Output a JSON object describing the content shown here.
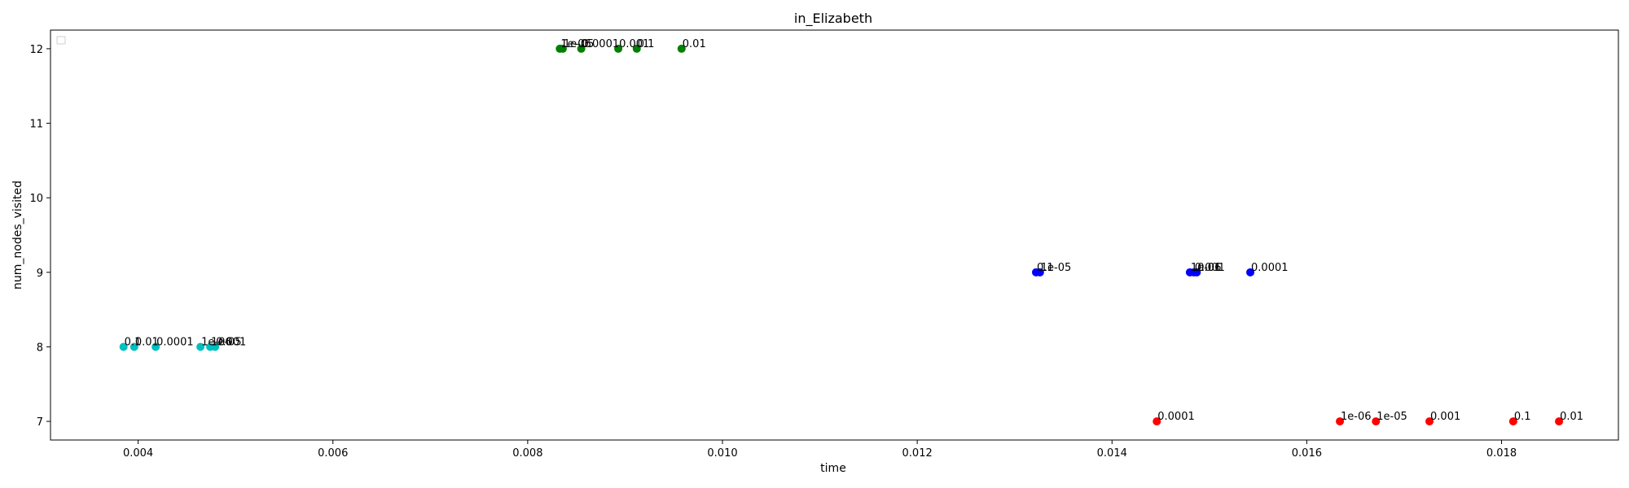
{
  "chart_data": {
    "type": "scatter",
    "title": "in_Elizabeth",
    "xlabel": "time",
    "ylabel": "num_nodes_visited",
    "xlim": [
      0.0031,
      0.0192
    ],
    "ylim": [
      6.75,
      12.25
    ],
    "xticks": [
      "0.004",
      "0.006",
      "0.008",
      "0.010",
      "0.012",
      "0.014",
      "0.016",
      "0.018"
    ],
    "xtick_values": [
      0.004,
      0.006,
      0.008,
      0.01,
      0.012,
      0.014,
      0.016,
      0.018
    ],
    "yticks": [
      "7",
      "8",
      "9",
      "10",
      "11",
      "12"
    ],
    "ytick_values": [
      7,
      8,
      9,
      10,
      11,
      12
    ],
    "grid": false,
    "legend": "top-left (empty)",
    "series": [
      {
        "color": "#008000",
        "points": [
          {
            "x": 0.00833,
            "y": 12,
            "label": "1e-06"
          },
          {
            "x": 0.00836,
            "y": 12,
            "label": "1e-05"
          },
          {
            "x": 0.00855,
            "y": 12,
            "label": "0.0001"
          },
          {
            "x": 0.00893,
            "y": 12,
            "label": "0.001"
          },
          {
            "x": 0.00912,
            "y": 12,
            "label": "0.1"
          },
          {
            "x": 0.00958,
            "y": 12,
            "label": "0.01"
          }
        ]
      },
      {
        "color": "#0000ff",
        "points": [
          {
            "x": 0.01322,
            "y": 9,
            "label": "0.1"
          },
          {
            "x": 0.01326,
            "y": 9,
            "label": "1e-05"
          },
          {
            "x": 0.0148,
            "y": 9,
            "label": "1e-06"
          },
          {
            "x": 0.01484,
            "y": 9,
            "label": "0.001"
          },
          {
            "x": 0.01487,
            "y": 9,
            "label": "0.01"
          },
          {
            "x": 0.01542,
            "y": 9,
            "label": "0.0001"
          }
        ]
      },
      {
        "color": "#00bfbf",
        "points": [
          {
            "x": 0.00385,
            "y": 8,
            "label": "0.1"
          },
          {
            "x": 0.00396,
            "y": 8,
            "label": "0.01"
          },
          {
            "x": 0.00418,
            "y": 8,
            "label": "0.0001"
          },
          {
            "x": 0.00464,
            "y": 8,
            "label": "1e-06"
          },
          {
            "x": 0.00474,
            "y": 8,
            "label": "1e-05"
          },
          {
            "x": 0.00479,
            "y": 8,
            "label": "0.001"
          }
        ]
      },
      {
        "color": "#ff0000",
        "points": [
          {
            "x": 0.01446,
            "y": 7,
            "label": "0.0001"
          },
          {
            "x": 0.01634,
            "y": 7,
            "label": "1e-06"
          },
          {
            "x": 0.01671,
            "y": 7,
            "label": "1e-05"
          },
          {
            "x": 0.01726,
            "y": 7,
            "label": "0.001"
          },
          {
            "x": 0.01812,
            "y": 7,
            "label": "0.1"
          },
          {
            "x": 0.01859,
            "y": 7,
            "label": "0.01"
          }
        ]
      }
    ]
  }
}
